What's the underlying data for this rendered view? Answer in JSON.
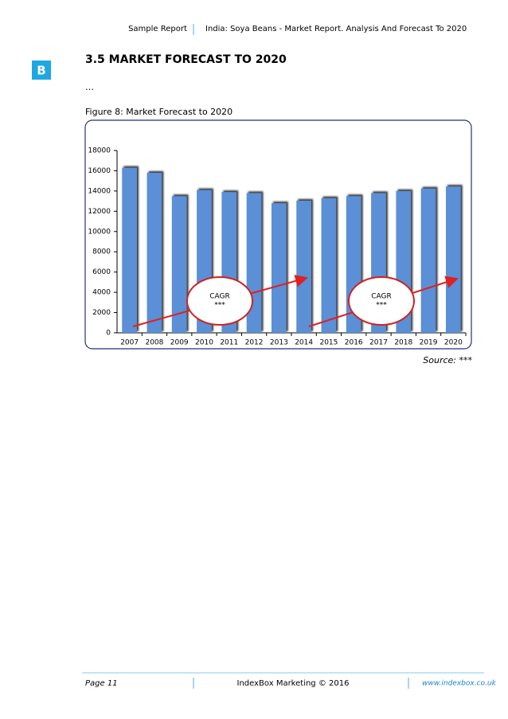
{
  "header": {
    "left": "Sample Report",
    "right": "India: Soya Beans - Market Report. Analysis And Forecast To 2020"
  },
  "logo": "B",
  "section_title": "3.5 MARKET FORECAST TO 2020",
  "ellipsis": "…",
  "figure_caption": "Figure 8: Market Forecast to 2020",
  "chart_data": {
    "type": "bar",
    "categories": [
      "2007",
      "2008",
      "2009",
      "2010",
      "2011",
      "2012",
      "2013",
      "2014",
      "2015",
      "2016",
      "2017",
      "2018",
      "2019",
      "2020"
    ],
    "values": [
      16300,
      15800,
      13500,
      14100,
      13900,
      13800,
      12800,
      13050,
      13300,
      13500,
      13800,
      14000,
      14250,
      14450
    ],
    "color": "#5b8fd6",
    "ylim": [
      0,
      18000
    ],
    "yticks": [
      0,
      2000,
      4000,
      6000,
      8000,
      10000,
      12000,
      14000,
      16000,
      18000
    ],
    "annotations": [
      {
        "lines": [
          "CAGR",
          "***"
        ]
      },
      {
        "lines": [
          "CAGR",
          "***"
        ]
      }
    ]
  },
  "source": "Source: ***",
  "footer": {
    "page": "Page 11",
    "company": "IndexBox Marketing © 2016",
    "url": "www.indexbox.co.uk"
  }
}
